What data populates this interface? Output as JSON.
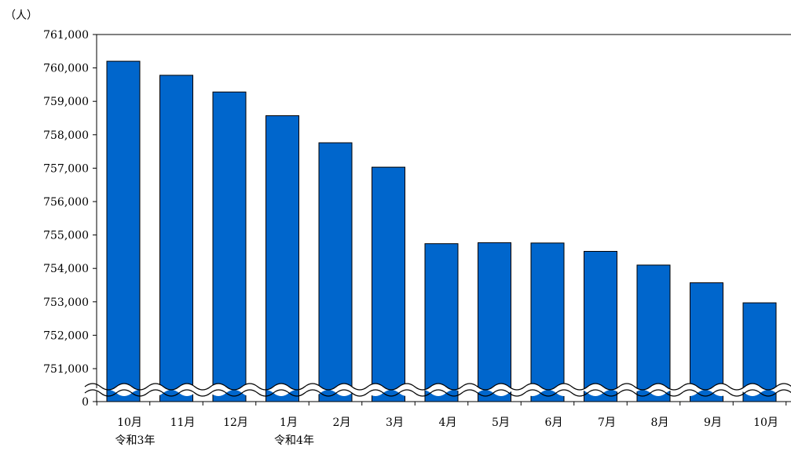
{
  "chart_data": {
    "type": "bar",
    "unit_label": "（人）",
    "categories": [
      "10月",
      "11月",
      "12月",
      "1月",
      "2月",
      "3月",
      "4月",
      "5月",
      "6月",
      "7月",
      "8月",
      "9月",
      "10月"
    ],
    "year_labels": [
      "令和3年",
      "",
      "",
      "令和4年",
      "",
      "",
      "",
      "",
      "",
      "",
      "",
      "",
      ""
    ],
    "values": [
      760200,
      759780,
      759280,
      758570,
      757760,
      757030,
      754740,
      754770,
      754760,
      754510,
      754100,
      753570,
      752970
    ],
    "yticks": [
      "761,000",
      "760,000",
      "759,000",
      "758,000",
      "757,000",
      "756,000",
      "755,000",
      "754,000",
      "753,000",
      "752,000",
      "751,000",
      "0"
    ],
    "ylim": [
      751000,
      761000
    ],
    "axis_break": true,
    "grid": false,
    "bar_color": "#0066cc",
    "break_color": "#ffffff",
    "axis_color": "#000000"
  }
}
